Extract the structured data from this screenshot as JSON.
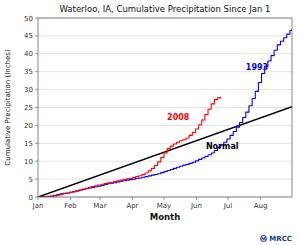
{
  "chart_data": {
    "type": "line",
    "title": "Waterloo, IA, Cumulative Precipitation Since Jan 1",
    "x_label": "Month",
    "y_label": "Cumulative Precipitation (Inches)",
    "xlim": [
      0,
      242
    ],
    "ylim": [
      0,
      50
    ],
    "xticks": [
      {
        "value": 0,
        "label": "Jan"
      },
      {
        "value": 31,
        "label": "Feb"
      },
      {
        "value": 59,
        "label": "Mar"
      },
      {
        "value": 90,
        "label": "Apr"
      },
      {
        "value": 120,
        "label": "May"
      },
      {
        "value": 151,
        "label": "Jun"
      },
      {
        "value": 181,
        "label": "Jul"
      },
      {
        "value": 212,
        "label": "Aug"
      }
    ],
    "yticks": [
      0,
      5,
      10,
      15,
      20,
      25,
      30,
      35,
      40,
      45,
      50
    ],
    "grid": "y",
    "series": [
      {
        "type": "line",
        "color": "#000000",
        "x": [
          0,
          242
        ],
        "values": [
          0,
          25.2
        ]
      },
      {
        "type": "step",
        "color": "#0000ff",
        "x": [
          0,
          3,
          6,
          9,
          12,
          15,
          18,
          21,
          24,
          27,
          30,
          33,
          36,
          39,
          42,
          45,
          48,
          51,
          54,
          57,
          60,
          63,
          66,
          69,
          72,
          75,
          78,
          81,
          84,
          87,
          90,
          93,
          96,
          99,
          102,
          105,
          108,
          111,
          114,
          117,
          120,
          123,
          126,
          129,
          132,
          135,
          138,
          141,
          144,
          147,
          150,
          153,
          156,
          159,
          162,
          165,
          168,
          171,
          174,
          177,
          180,
          183,
          186,
          189,
          192,
          195,
          198,
          201,
          204,
          207,
          210,
          213,
          216,
          219,
          222,
          225,
          228,
          231,
          234,
          237,
          240,
          242
        ],
        "values": [
          0.0,
          0.05,
          0.1,
          0.2,
          0.3,
          0.5,
          0.7,
          0.9,
          1.0,
          1.1,
          1.3,
          1.5,
          1.7,
          1.9,
          2.1,
          2.3,
          2.5,
          2.7,
          2.85,
          3.0,
          3.2,
          3.5,
          3.7,
          3.85,
          4.0,
          4.2,
          4.4,
          4.55,
          4.7,
          4.85,
          5.0,
          5.15,
          5.3,
          5.5,
          5.7,
          5.9,
          6.1,
          6.3,
          6.5,
          6.8,
          7.1,
          7.4,
          7.7,
          8.0,
          8.3,
          8.6,
          8.9,
          9.1,
          9.4,
          9.7,
          10.1,
          10.5,
          10.9,
          11.3,
          11.8,
          12.3,
          13.0,
          13.8,
          14.5,
          15.3,
          16.2,
          17.2,
          18.3,
          19.5,
          20.8,
          22.2,
          23.7,
          25.5,
          27.5,
          29.5,
          32.0,
          34.5,
          36.5,
          38.0,
          39.5,
          41.0,
          42.5,
          43.5,
          44.5,
          45.5,
          46.5,
          47.0
        ]
      },
      {
        "type": "step",
        "color": "#ff0000",
        "x": [
          0,
          3,
          6,
          9,
          12,
          15,
          18,
          21,
          24,
          27,
          30,
          33,
          36,
          39,
          42,
          45,
          48,
          51,
          54,
          57,
          60,
          63,
          66,
          69,
          72,
          75,
          78,
          81,
          84,
          87,
          90,
          93,
          96,
          99,
          102,
          105,
          108,
          111,
          114,
          117,
          120,
          123,
          126,
          129,
          132,
          135,
          138,
          141,
          144,
          147,
          150,
          153,
          156,
          159,
          162,
          165,
          168,
          171,
          174
        ],
        "values": [
          0.0,
          0.05,
          0.1,
          0.15,
          0.2,
          0.3,
          0.5,
          0.7,
          0.9,
          1.1,
          1.3,
          1.5,
          1.7,
          1.95,
          2.2,
          2.45,
          2.7,
          2.95,
          3.15,
          3.35,
          3.55,
          3.75,
          3.95,
          4.1,
          4.3,
          4.5,
          4.7,
          4.9,
          5.05,
          5.25,
          5.45,
          5.7,
          5.95,
          6.25,
          6.7,
          7.3,
          8.0,
          8.8,
          9.8,
          11.0,
          12.3,
          13.5,
          14.2,
          14.8,
          15.3,
          15.7,
          16.0,
          16.5,
          17.2,
          18.0,
          19.0,
          20.2,
          21.5,
          23.0,
          24.5,
          26.0,
          27.2,
          27.7,
          28.0
        ]
      }
    ],
    "annotations": [
      {
        "text": "1993",
        "x": 198,
        "y": 35.5,
        "color": "#0000ff"
      },
      {
        "text": "2008",
        "x": 123,
        "y": 21.5,
        "color": "#ff0000"
      },
      {
        "text": "Normal",
        "x": 160,
        "y": 13.5,
        "color": "#000000"
      }
    ],
    "credit": "Ⓜ MRCC"
  }
}
